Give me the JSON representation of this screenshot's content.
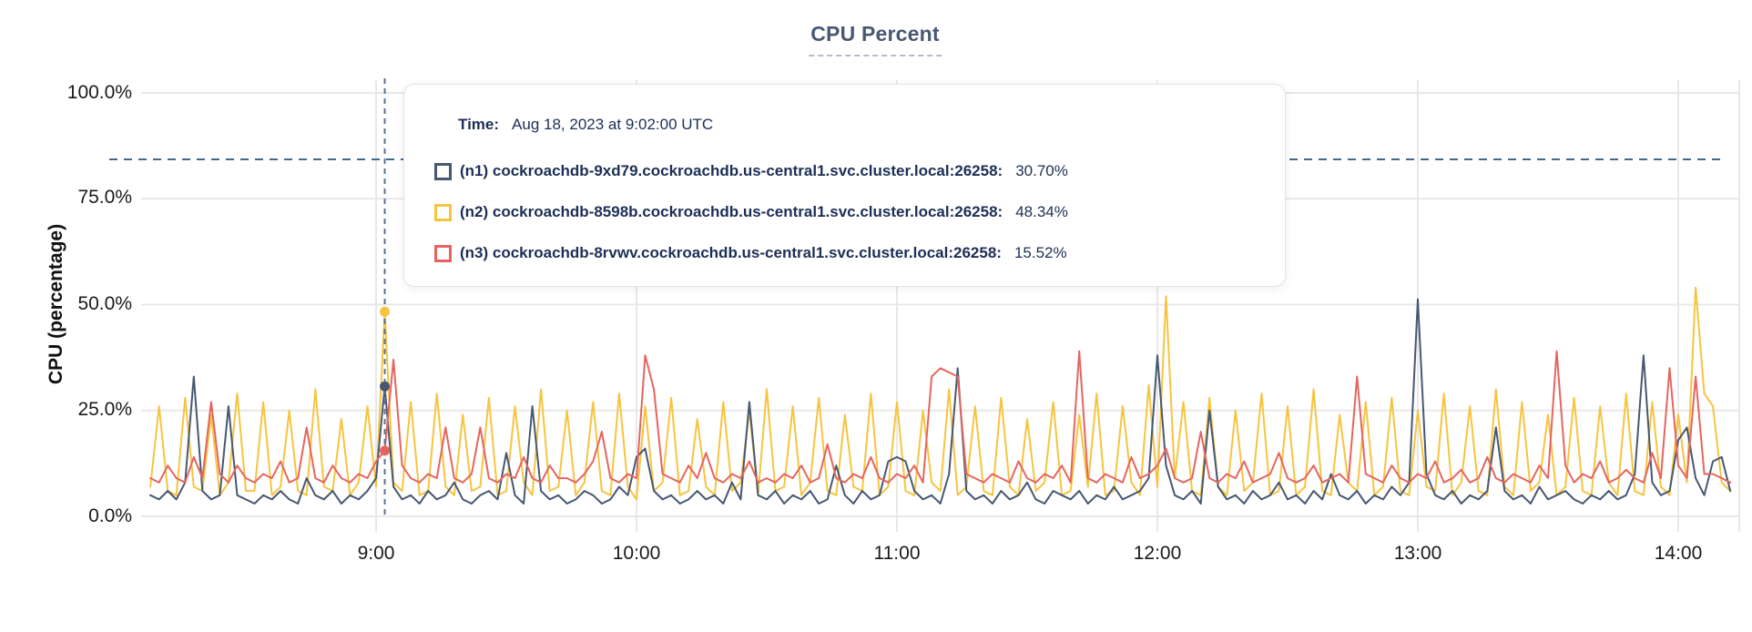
{
  "title": "CPU Percent",
  "y_axis": {
    "title": "CPU (percentage)"
  },
  "tooltip": {
    "time_label": "Time:",
    "time_value": "Aug 18, 2023 at 9:02:00 UTC",
    "rows": [
      {
        "label": "(n1) cockroachdb-9xd79.cockroachdb.us-central1.svc.cluster.local:26258:",
        "value": "30.70%",
        "color": "#475872"
      },
      {
        "label": "(n2) cockroachdb-8598b.cockroachdb.us-central1.svc.cluster.local:26258:",
        "value": "48.34%",
        "color": "#f6c440"
      },
      {
        "label": "(n3) cockroachdb-8rvwv.cockroachdb.us-central1.svc.cluster.local:26258:",
        "value": "15.52%",
        "color": "#e5655e"
      }
    ]
  },
  "colors": {
    "grid": "#e8e8e8",
    "threshold_line": "#44678e",
    "hover_line": "#5a7390",
    "title_text": "#475872",
    "tooltip_text": "#1c2f55"
  },
  "chart_data": {
    "type": "line",
    "title": "CPU Percent",
    "xlabel": "",
    "ylabel": "CPU (percentage)",
    "ylim": [
      0,
      100
    ],
    "grid": true,
    "y_ticks": [
      "0.0%",
      "25.0%",
      "50.0%",
      "75.0%",
      "100.0%"
    ],
    "y_tick_values": [
      0,
      25,
      50,
      75,
      100
    ],
    "x_ticks": [
      "9:00",
      "10:00",
      "11:00",
      "12:00",
      "13:00",
      "14:00"
    ],
    "x_tick_minutes": [
      540,
      600,
      660,
      720,
      780,
      840
    ],
    "x_start_minutes": 488,
    "step_minutes": 2,
    "threshold_percent": 84.3,
    "hover": {
      "time_minutes": 542,
      "time_text": "Aug 18, 2023 at 9:02:00 UTC",
      "values": [
        30.7,
        48.34,
        15.52
      ]
    },
    "series": [
      {
        "name": "(n1) cockroachdb-9xd79.cockroachdb.us-central1.svc.cluster.local:26258",
        "color": "#475872",
        "values": [
          5,
          4,
          6,
          4,
          8,
          33,
          6,
          4,
          5,
          26,
          5,
          4,
          3,
          5,
          4,
          6,
          4,
          3,
          9,
          5,
          4,
          6,
          3,
          5,
          4,
          6,
          9,
          30.7,
          7,
          4,
          5,
          3,
          6,
          4,
          5,
          8,
          4,
          3,
          5,
          6,
          4,
          15,
          5,
          3,
          26,
          6,
          4,
          5,
          3,
          4,
          6,
          5,
          3,
          4,
          7,
          5,
          14,
          16,
          6,
          4,
          5,
          3,
          4,
          6,
          4,
          5,
          3,
          8,
          4,
          27,
          5,
          4,
          6,
          3,
          5,
          4,
          6,
          3,
          4,
          12,
          5,
          3,
          6,
          4,
          5,
          13,
          14,
          13,
          6,
          4,
          5,
          3,
          10,
          35,
          6,
          4,
          5,
          3,
          6,
          4,
          5,
          8,
          4,
          3,
          6,
          5,
          4,
          6,
          3,
          5,
          4,
          7,
          4,
          5,
          6,
          9,
          38,
          12,
          5,
          4,
          6,
          3,
          25,
          7,
          4,
          5,
          3,
          6,
          4,
          5,
          8,
          4,
          5,
          3,
          6,
          4,
          10,
          5,
          4,
          6,
          3,
          5,
          4,
          7,
          5,
          8,
          51.3,
          10,
          5,
          4,
          6,
          3,
          5,
          4,
          6,
          21,
          6,
          4,
          5,
          3,
          7,
          4,
          5,
          6,
          4,
          3,
          5,
          4,
          6,
          4,
          5,
          10,
          38,
          8,
          5,
          6,
          18,
          21,
          9,
          5,
          13,
          14,
          6
        ]
      },
      {
        "name": "(n2) cockroachdb-8598b.cockroachdb.us-central1.svc.cluster.local:26258",
        "color": "#f6c440",
        "values": [
          7,
          26,
          6,
          5,
          28,
          7,
          6,
          24,
          5,
          8,
          29,
          6,
          6,
          27,
          5,
          7,
          25,
          6,
          5,
          30,
          7,
          6,
          23,
          5,
          8,
          26,
          7,
          48.34,
          8,
          6,
          27,
          5,
          6,
          29,
          7,
          5,
          24,
          6,
          7,
          28,
          5,
          6,
          26,
          8,
          5,
          30,
          6,
          7,
          25,
          5,
          8,
          27,
          6,
          5,
          29,
          7,
          4,
          26,
          6,
          8,
          28,
          5,
          6,
          23,
          7,
          5,
          27,
          6,
          8,
          25,
          5,
          30,
          6,
          7,
          26,
          5,
          8,
          28,
          6,
          5,
          24,
          7,
          6,
          29,
          5,
          7,
          27,
          6,
          5,
          25,
          8,
          6,
          30,
          5,
          7,
          26,
          6,
          5,
          28,
          7,
          5,
          23,
          6,
          8,
          27,
          5,
          6,
          24,
          7,
          29,
          5,
          6,
          26,
          8,
          5,
          31,
          7,
          52,
          9,
          27,
          6,
          5,
          28,
          7,
          5,
          25,
          6,
          8,
          29,
          5,
          6,
          26,
          5,
          7,
          30,
          6,
          5,
          24,
          8,
          6,
          27,
          5,
          7,
          28,
          6,
          5,
          25,
          7,
          6,
          29,
          5,
          8,
          26,
          6,
          5,
          30,
          7,
          5,
          27,
          6,
          8,
          24,
          5,
          7,
          28,
          6,
          5,
          26,
          8,
          5,
          29,
          6,
          5,
          27,
          7,
          5,
          24,
          8,
          54,
          29,
          26,
          8,
          6
        ]
      },
      {
        "name": "(n3) cockroachdb-8rvwv.cockroachdb.us-central1.svc.cluster.local:26258",
        "color": "#e5655e",
        "values": [
          9,
          8,
          12,
          9,
          8,
          14,
          9,
          27,
          10,
          8,
          12,
          9,
          8,
          10,
          9,
          13,
          8,
          9,
          21,
          9,
          8,
          12,
          9,
          8,
          10,
          9,
          13,
          15.52,
          37,
          12,
          9,
          8,
          10,
          9,
          21,
          9,
          8,
          10,
          21,
          9,
          8,
          10,
          9,
          14,
          9,
          8,
          12,
          9,
          9,
          8,
          10,
          13,
          20,
          9,
          8,
          10,
          9,
          38,
          30,
          10,
          9,
          8,
          12,
          9,
          15,
          9,
          8,
          10,
          9,
          13,
          8,
          9,
          8,
          10,
          9,
          12,
          8,
          9,
          17,
          9,
          8,
          10,
          9,
          14,
          9,
          8,
          10,
          9,
          12,
          8,
          33,
          35,
          34,
          33,
          10,
          9,
          8,
          10,
          9,
          8,
          13,
          9,
          8,
          10,
          9,
          12,
          8,
          39,
          9,
          8,
          10,
          9,
          8,
          14,
          9,
          10,
          12,
          16,
          9,
          8,
          9,
          20,
          9,
          8,
          10,
          9,
          13,
          8,
          9,
          10,
          15,
          9,
          8,
          9,
          12,
          8,
          9,
          10,
          8,
          33,
          10,
          9,
          8,
          12,
          9,
          8,
          10,
          9,
          13,
          8,
          9,
          11,
          8,
          9,
          14,
          9,
          8,
          10,
          9,
          8,
          12,
          9,
          39,
          12,
          8,
          10,
          9,
          13,
          8,
          9,
          11,
          9,
          8,
          15,
          9,
          35,
          12,
          9,
          33,
          10,
          10,
          9,
          8
        ]
      }
    ]
  }
}
